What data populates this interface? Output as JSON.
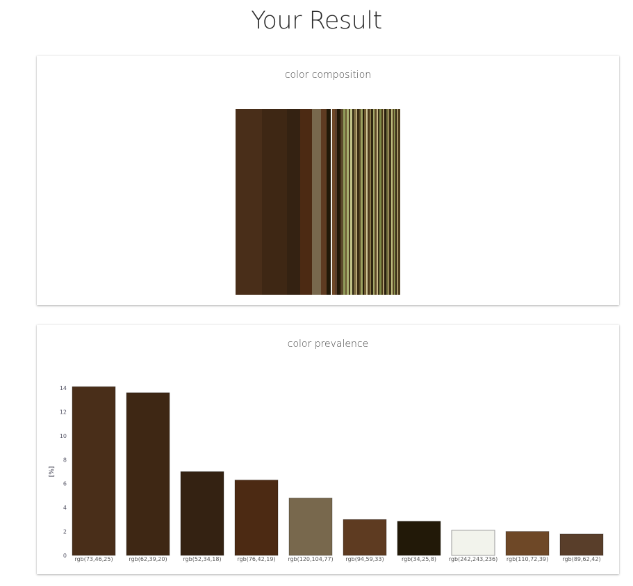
{
  "page": {
    "title": "Your Result"
  },
  "composition": {
    "title": "color composition"
  },
  "chart_data": [
    {
      "type": "bar",
      "title": "color prevalence",
      "ylabel": "[%]",
      "ylim": [
        0,
        15
      ],
      "yticks": [
        0,
        2,
        4,
        6,
        8,
        10,
        12,
        14
      ],
      "categories": [
        "rgb(73,46,25)",
        "rgb(62,39,20)",
        "rgb(52,34,18)",
        "rgb(76,42,19)",
        "rgb(120,104,77)",
        "rgb(94,59,33)",
        "rgb(34,25,8)",
        "rgb(242,243,236)",
        "rgb(110,72,39)",
        "rgb(89,62,42)"
      ],
      "values": [
        14.1,
        13.6,
        7.0,
        6.3,
        4.8,
        3.0,
        2.85,
        2.1,
        2.0,
        1.8
      ],
      "colors": [
        "#492e19",
        "#3e2714",
        "#342212",
        "#4c2a13",
        "#78684d",
        "#5e3b21",
        "#221908",
        "#f2f3ec",
        "#6e4827",
        "#593e2a"
      ]
    }
  ]
}
